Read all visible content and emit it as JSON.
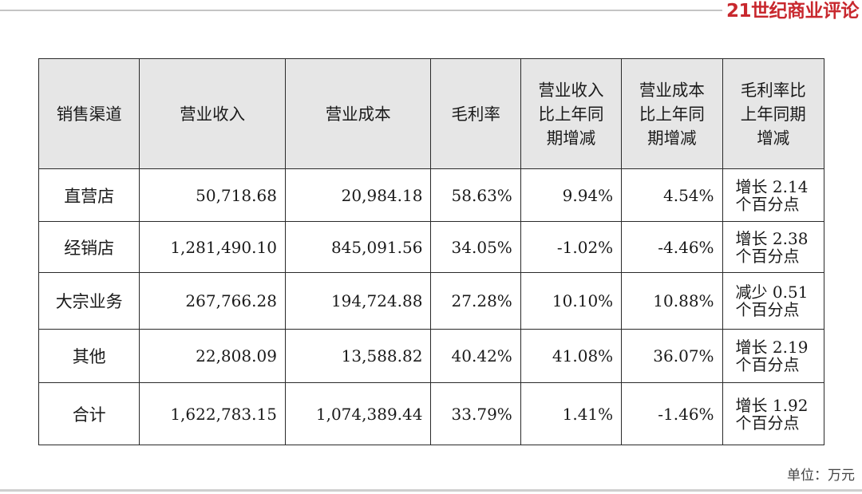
{
  "brand": {
    "name": "21世纪商业评论"
  },
  "table": {
    "headers": [
      "销售渠道",
      "营业收入",
      "营业成本",
      "毛利率",
      "营业收入比上年同期增减",
      "营业成本比上年同期增减",
      "毛利率比上年同期增减"
    ],
    "header_lines": [
      [
        "销售渠道"
      ],
      [
        "营业收入"
      ],
      [
        "营业成本"
      ],
      [
        "毛利率"
      ],
      [
        "营业收入",
        "比上年同",
        "期增减"
      ],
      [
        "营业成本",
        "比上年同",
        "期增减"
      ],
      [
        "毛利率比",
        "上年同期",
        "增减"
      ]
    ],
    "rows": [
      {
        "channel": "直营店",
        "revenue": "50,718.68",
        "cost": "20,984.18",
        "margin": "58.63%",
        "revenue_change": "9.94%",
        "cost_change": "4.54%",
        "margin_change": [
          "增长 2.14",
          "个百分点"
        ]
      },
      {
        "channel": "经销店",
        "revenue": "1,281,490.10",
        "cost": "845,091.56",
        "margin": "34.05%",
        "revenue_change": "-1.02%",
        "cost_change": "-4.46%",
        "margin_change": [
          "增长 2.38",
          "个百分点"
        ]
      },
      {
        "channel": "大宗业务",
        "revenue": "267,766.28",
        "cost": "194,724.88",
        "margin": "27.28%",
        "revenue_change": "10.10%",
        "cost_change": "10.88%",
        "margin_change": [
          "减少 0.51",
          "个百分点"
        ]
      },
      {
        "channel": "其他",
        "revenue": "22,808.09",
        "cost": "13,588.82",
        "margin": "40.42%",
        "revenue_change": "41.08%",
        "cost_change": "36.07%",
        "margin_change": [
          "增长 2.19",
          "个百分点"
        ]
      },
      {
        "channel": "合计",
        "revenue": "1,622,783.15",
        "cost": "1,074,389.44",
        "margin": "33.79%",
        "revenue_change": "1.41%",
        "cost_change": "-1.46%",
        "margin_change": [
          "增长 1.92",
          "个百分点"
        ]
      }
    ]
  },
  "footnote": {
    "unit": "单位：万元"
  },
  "colors": {
    "brand": "#c8282e",
    "header_bg": "#e6e6e6",
    "border": "#2a2a2a"
  }
}
